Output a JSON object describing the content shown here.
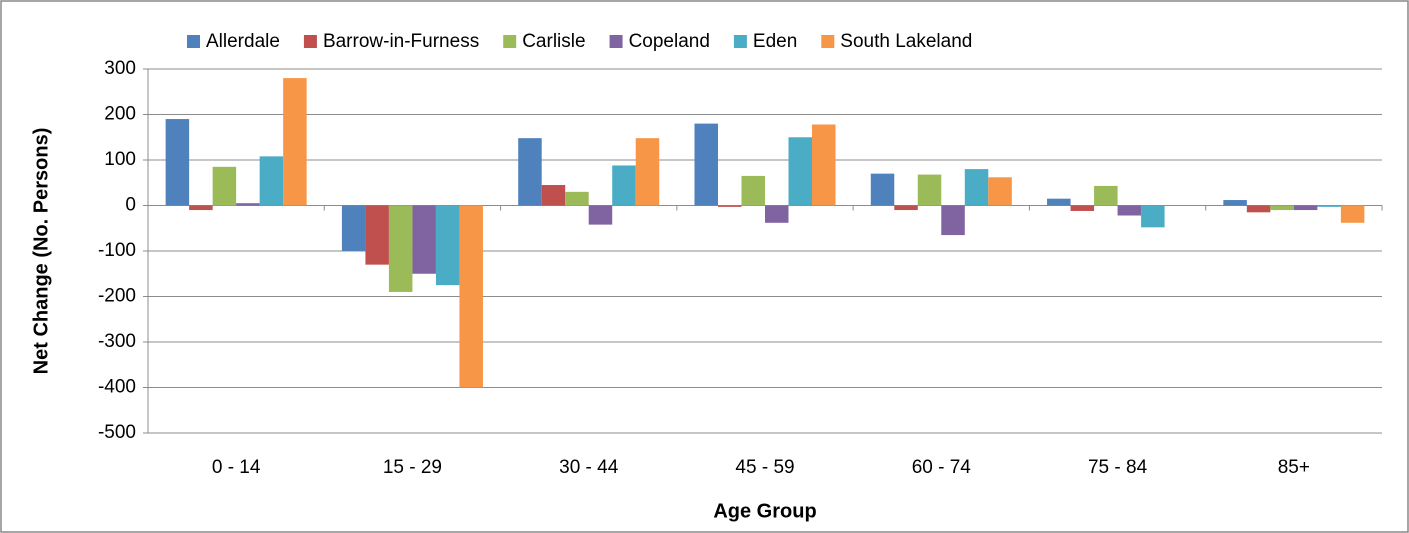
{
  "chart_data": {
    "type": "bar",
    "categories": [
      "0 - 14",
      "15 - 29",
      "30 - 44",
      "45 - 59",
      "60 - 74",
      "75 - 84",
      "85+"
    ],
    "series": [
      {
        "name": "Allerdale",
        "color": "#4f81bd",
        "values": [
          190,
          -100,
          148,
          180,
          70,
          15,
          12
        ]
      },
      {
        "name": "Barrow-in-Furness",
        "color": "#c0504d",
        "values": [
          -10,
          -130,
          45,
          -3,
          -10,
          -12,
          -15
        ]
      },
      {
        "name": "Carlisle",
        "color": "#9bbb59",
        "values": [
          85,
          -190,
          30,
          65,
          68,
          43,
          -10
        ]
      },
      {
        "name": "Copeland",
        "color": "#8064a2",
        "values": [
          5,
          -150,
          -42,
          -38,
          -65,
          -22,
          -10
        ]
      },
      {
        "name": "Eden",
        "color": "#4bacc6",
        "values": [
          108,
          -175,
          88,
          150,
          80,
          -48,
          -3
        ]
      },
      {
        "name": "South Lakeland",
        "color": "#f79646",
        "values": [
          280,
          -400,
          148,
          178,
          62,
          0,
          -38
        ]
      }
    ],
    "ylim": [
      -500,
      300
    ],
    "yticks": [
      -500,
      -400,
      -300,
      -200,
      -100,
      0,
      100,
      200,
      300
    ],
    "xlabel": "Age Group",
    "ylabel": "Net Change (No. Persons)",
    "grid": true,
    "legend": "top"
  }
}
